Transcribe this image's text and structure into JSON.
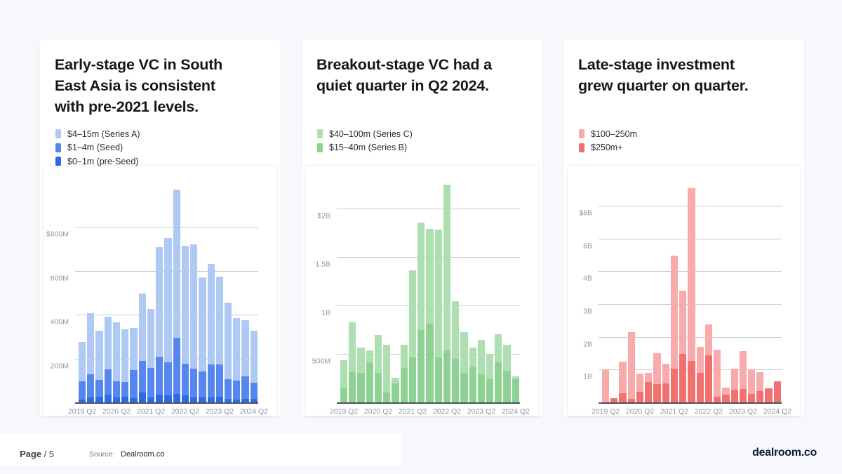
{
  "page": {
    "background": "#f6f8fc",
    "footer": {
      "page_label": "Page",
      "page_number": "/ 5",
      "source_label": "Source:",
      "source_value": "Dealroom.co",
      "logo_text": "dealroom.co"
    }
  },
  "chart_data": [
    {
      "type": "bar",
      "stacked": true,
      "title": "Early-stage VC in South\nEast Asia is consistent\nwith pre-2021 levels.",
      "unit": "USD millions",
      "ylim_m": 1035,
      "grid": "horizontal",
      "legend_position": "top-left",
      "baseline_color": "#4e5257",
      "categories": [
        "2019 Q2",
        "2019 Q3",
        "2019 Q4",
        "2020 Q1",
        "2020 Q2",
        "2020 Q3",
        "2020 Q4",
        "2021 Q1",
        "2021 Q2",
        "2021 Q3",
        "2021 Q4",
        "2022 Q1",
        "2022 Q2",
        "2022 Q3",
        "2022 Q4",
        "2023 Q1",
        "2023 Q2",
        "2023 Q3",
        "2023 Q4",
        "2024 Q1",
        "2024 Q2"
      ],
      "x_tick_every": 4,
      "gridlines": [
        {
          "value_m": 200,
          "label": "200M"
        },
        {
          "value_m": 400,
          "label": "400M"
        },
        {
          "value_m": 600,
          "label": "600M"
        },
        {
          "value_m": 800,
          "label": "$800M"
        }
      ],
      "legend": [
        {
          "label": "$4–15m (Series A)",
          "color": "#aec9f3"
        },
        {
          "label": "$1–4m (Seed)",
          "color": "#5687ee"
        },
        {
          "label": "$0–1m (pre-Seed)",
          "color": "#2d6ae3"
        }
      ],
      "series": [
        {
          "name": "$0–1m (pre-Seed)",
          "color": "#2d6ae3",
          "values_m": [
            15,
            25,
            30,
            38,
            27,
            28,
            22,
            48,
            25,
            38,
            35,
            42,
            35,
            25,
            25,
            27,
            30,
            20,
            17,
            20,
            18
          ]
        },
        {
          "name": "$1–4m (Seed)",
          "color": "#5687ee",
          "values_m": [
            85,
            105,
            75,
            117,
            73,
            69,
            128,
            144,
            135,
            175,
            151,
            256,
            145,
            133,
            120,
            148,
            145,
            90,
            86,
            102,
            75
          ]
        },
        {
          "name": "$4–15m (Series A)",
          "color": "#aec9f3",
          "values_m": [
            180,
            280,
            225,
            240,
            270,
            238,
            193,
            308,
            270,
            498,
            566,
            677,
            537,
            565,
            429,
            459,
            401,
            349,
            284,
            257,
            238
          ]
        }
      ]
    },
    {
      "type": "bar",
      "stacked": true,
      "title": "Breakout-stage VC had a\nquiet quarter in Q2 2024.",
      "unit": "USD millions",
      "ylim_m": 2340,
      "grid": "horizontal",
      "legend_position": "top-left",
      "baseline_color": "#4e5257",
      "categories": [
        "2019 Q2",
        "2019 Q3",
        "2019 Q4",
        "2020 Q1",
        "2020 Q2",
        "2020 Q3",
        "2020 Q4",
        "2021 Q1",
        "2021 Q2",
        "2021 Q3",
        "2021 Q4",
        "2022 Q1",
        "2022 Q2",
        "2022 Q3",
        "2022 Q4",
        "2023 Q1",
        "2023 Q2",
        "2023 Q3",
        "2023 Q4",
        "2024 Q1",
        "2024 Q2"
      ],
      "x_tick_every": 4,
      "gridlines": [
        {
          "value_m": 500,
          "label": "500M"
        },
        {
          "value_m": 1000,
          "label": "1B"
        },
        {
          "value_m": 1500,
          "label": "1.5B"
        },
        {
          "value_m": 2000,
          "label": "$2B"
        }
      ],
      "legend": [
        {
          "label": "$40–100m (Series C)",
          "color": "#addfb0"
        },
        {
          "label": "$15–40m (Series B)",
          "color": "#8dd293"
        }
      ],
      "series": [
        {
          "name": "$15–40m (Series B)",
          "color": "#8dd293",
          "values_m": [
            150,
            320,
            310,
            420,
            310,
            110,
            200,
            360,
            470,
            750,
            820,
            470,
            540,
            460,
            310,
            370,
            300,
            250,
            420,
            330,
            250
          ]
        },
        {
          "name": "$40–100m (Series C)",
          "color": "#addfb0",
          "values_m": [
            290,
            510,
            260,
            120,
            390,
            490,
            60,
            240,
            900,
            1110,
            980,
            1320,
            1710,
            590,
            420,
            200,
            350,
            255,
            290,
            270,
            25
          ]
        }
      ]
    },
    {
      "type": "bar",
      "stacked": true,
      "title": "Late-stage investment\ngrew quarter on quarter.",
      "unit": "USD millions",
      "ylim_m": 6920,
      "grid": "horizontal",
      "legend_position": "top-left",
      "baseline_color": "#4e5257",
      "categories": [
        "2019 Q2",
        "2019 Q3",
        "2019 Q4",
        "2020 Q1",
        "2020 Q2",
        "2020 Q3",
        "2020 Q4",
        "2021 Q1",
        "2021 Q2",
        "2021 Q3",
        "2021 Q4",
        "2022 Q1",
        "2022 Q2",
        "2022 Q3",
        "2022 Q4",
        "2023 Q1",
        "2023 Q2",
        "2023 Q3",
        "2023 Q4",
        "2024 Q1",
        "2024 Q2"
      ],
      "x_tick_every": 4,
      "gridlines": [
        {
          "value_m": 1000,
          "label": "1B"
        },
        {
          "value_m": 2000,
          "label": "2B"
        },
        {
          "value_m": 3000,
          "label": "3B"
        },
        {
          "value_m": 4000,
          "label": "4B"
        },
        {
          "value_m": 5000,
          "label": "5B"
        },
        {
          "value_m": 6000,
          "label": "$6B"
        }
      ],
      "legend": [
        {
          "label": "$100–250m",
          "color": "#f8abaa"
        },
        {
          "label": "$250m+",
          "color": "#f07170"
        }
      ],
      "series": [
        {
          "name": "$250m+",
          "color": "#f07170",
          "values_m": [
            20,
            140,
            300,
            130,
            350,
            650,
            580,
            600,
            1050,
            1500,
            1280,
            930,
            1450,
            200,
            250,
            400,
            420,
            280,
            360,
            440,
            670
          ]
        },
        {
          "name": "$100–250m",
          "color": "#f8abaa",
          "values_m": [
            1000,
            0,
            970,
            2030,
            560,
            280,
            940,
            610,
            3450,
            1930,
            5270,
            790,
            950,
            1430,
            220,
            650,
            1160,
            740,
            590,
            0,
            0
          ]
        }
      ]
    }
  ]
}
